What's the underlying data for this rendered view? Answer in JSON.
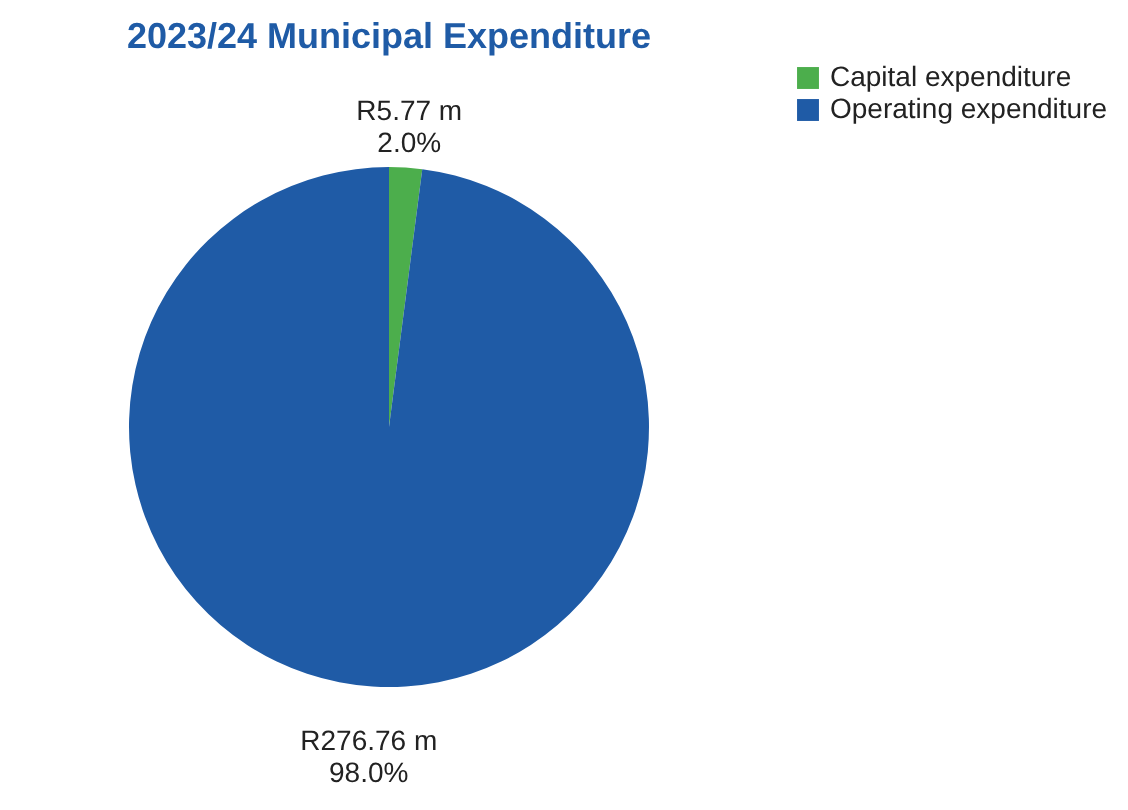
{
  "chart_data": {
    "type": "pie",
    "title": "2023/24 Municipal Expenditure",
    "categories": [
      "Capital expenditure",
      "Operating expenditure"
    ],
    "values": [
      5.77,
      276.76
    ],
    "colors": [
      "#4cae4c",
      "#1f5ba6"
    ],
    "value_labels": [
      "R5.77 m\n2.0%",
      "R276.76 m\n98.0%"
    ],
    "legend": "right"
  }
}
